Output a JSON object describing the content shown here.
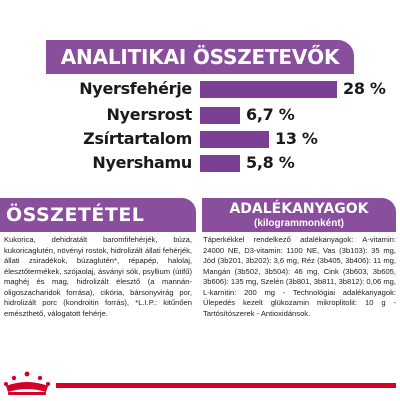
{
  "header": {
    "title": "ANALITIKAI ÖSSZETEVŐK"
  },
  "analytics": [
    {
      "label": "Nyersfehérje",
      "value": "28 %",
      "fraction": 1.0
    },
    {
      "label": "Nyersrost",
      "value": "6,7 %",
      "fraction": 0.0
    },
    {
      "label": "Zsírtartalom",
      "value": "13 %",
      "fraction": 0.3
    },
    {
      "label": "Nyershamu",
      "value": "5,8 %",
      "fraction": 0.0
    }
  ],
  "composition": {
    "title": "ÖSSZETÉTEL",
    "text": "Kukorica, dehidratált baromfifehérjék, búza, kukoricaglutén, növényi rostok, hidrolizált állati fehérjék, állati zsiradékok, búzaglutén*, répapép, halolaj, élesztőtermékek, szójaolaj, ásványi sók, psyllium (útifű) maghéj és mag, hidrolizált élesztő (a mannán-oligoszacharidok forrása), cikória, bársonyvirág por, hidrolizált porc (kondroitin forrás), *L.I.P.: kitűnően emészthető, válogatott fehérje."
  },
  "additives": {
    "title": "ADALÉKANYAGOK",
    "subtitle": "(kilogrammonként)",
    "text": "Táperkékkel rendelkező adalékanyagok: A-vitamin: 24000 NE, D3-vitamin: 1100 NE, Vas (3b103): 35 mg, Jód (3b201, 3b202): 3,6 mg, Réz (3b405, 3b406): 11 mg, Mangán (3b502, 3b504): 46 mg, Cink (3b603, 3b605, 3b606): 135 mg, Szelén (3b801, 3b811, 3b812): 0,06 mg, L-karnitin: 200 mg - Technológiai adalékanyagok: Ülepedés kezelt glükozamin mikroplitolit: 10 g - Tartósítószerek - Antioxidánsok."
  },
  "colors": {
    "accent": "#8a4f9c",
    "bar": "#7b3f93",
    "brand_red": "#d4002a"
  },
  "logo": {
    "icon": "royal-canin-crown-logo"
  }
}
